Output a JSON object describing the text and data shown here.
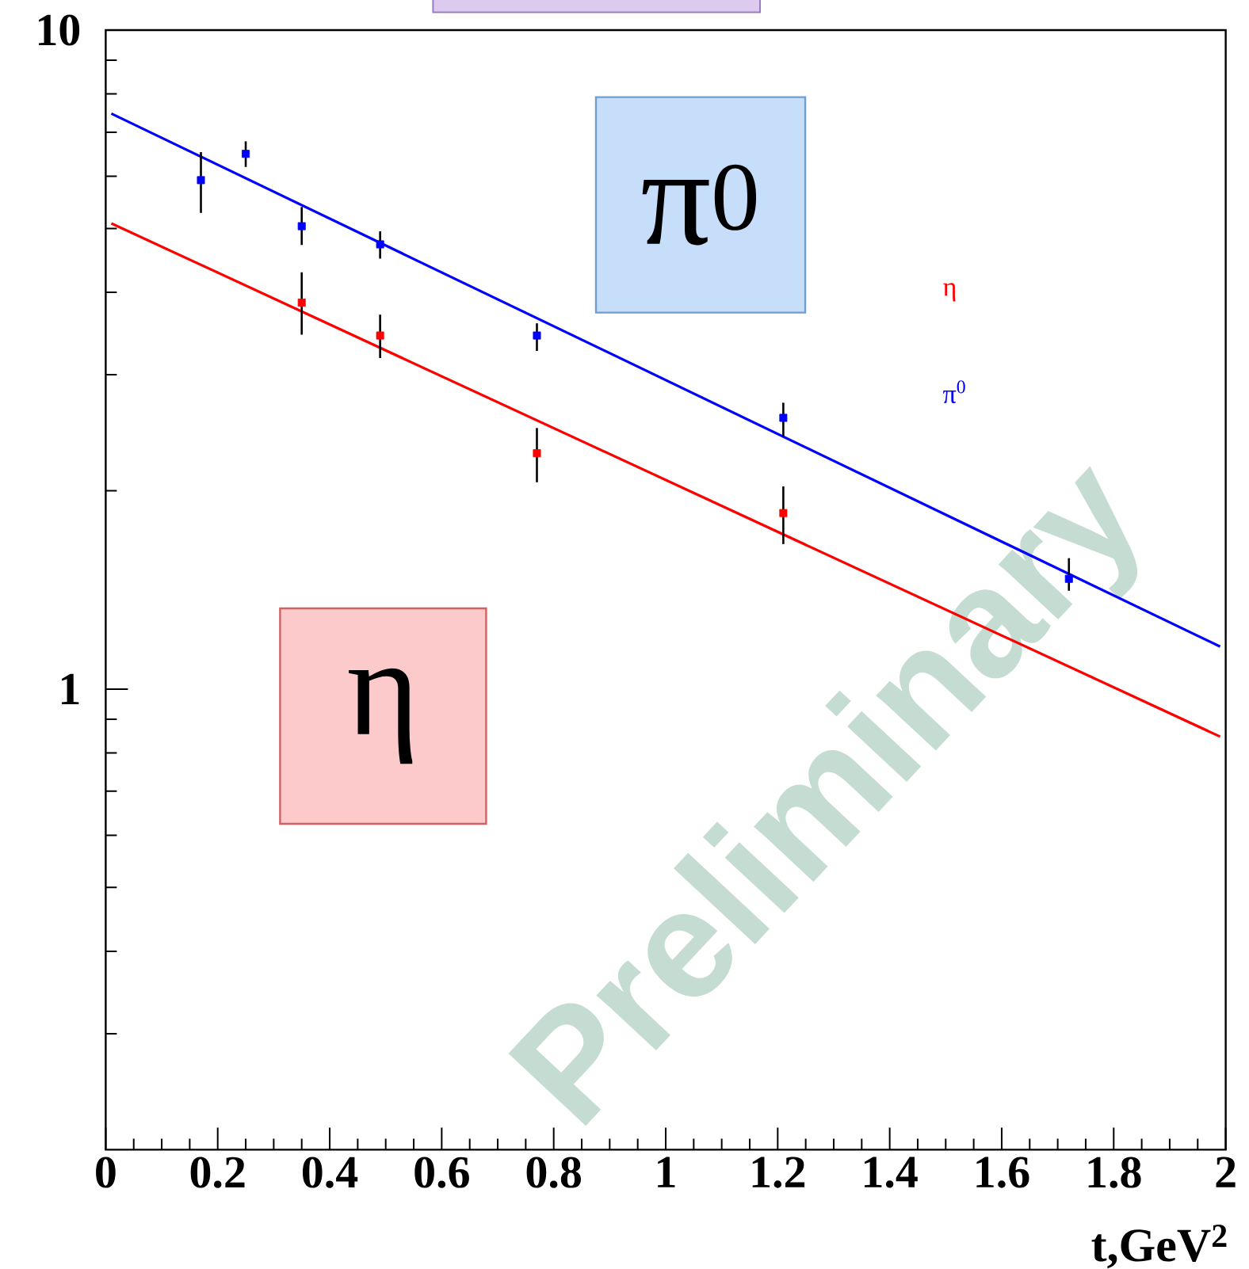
{
  "chart_data": {
    "type": "scatter",
    "xlabel": "t,GeV$^{2}$",
    "annotations": [
      "π$^{0}$",
      "η",
      "Preliminary"
    ],
    "log": "y",
    "marker": "square",
    "legend": "top right",
    "xlim": [
      0,
      2
    ],
    "xticks": [
      0,
      {
        "value": 0.05,
        "label": null
      },
      {
        "value": 0.1,
        "label": null
      },
      {
        "value": 0.15,
        "label": null
      },
      0.2,
      {
        "value": 0.25,
        "label": null
      },
      {
        "value": 0.3,
        "label": null
      },
      {
        "value": 0.35,
        "label": null
      },
      0.4,
      {
        "value": 0.45,
        "label": null
      },
      {
        "value": 0.5,
        "label": null
      },
      {
        "value": 0.55,
        "label": null
      },
      0.6,
      {
        "value": 0.65,
        "label": null
      },
      {
        "value": 0.7,
        "label": null
      },
      {
        "value": 0.75,
        "label": null
      },
      0.8,
      {
        "value": 0.85,
        "label": null
      },
      {
        "value": 0.9,
        "label": null
      },
      {
        "value": 0.95,
        "label": null
      },
      1,
      {
        "value": 1.05,
        "label": null
      },
      {
        "value": 1.1,
        "label": null
      },
      {
        "value": 1.15,
        "label": null
      },
      1.2,
      {
        "value": 1.25,
        "label": null
      },
      {
        "value": 1.3,
        "label": null
      },
      {
        "value": 1.35,
        "label": null
      },
      1.4,
      {
        "value": 1.45,
        "label": null
      },
      {
        "value": 1.5,
        "label": null
      },
      {
        "value": 1.55,
        "label": null
      },
      1.6,
      {
        "value": 1.65,
        "label": null
      },
      {
        "value": 1.7,
        "label": null
      },
      {
        "value": 1.75,
        "label": null
      },
      1.8,
      {
        "value": 1.85,
        "label": null
      },
      {
        "value": 1.9,
        "label": null
      },
      {
        "value": 1.95,
        "label": null
      },
      2
    ],
    "ylim": [
      0.2,
      10
    ],
    "yticks": [
      {
        "value": 0.3,
        "label": null
      },
      {
        "value": 0.4,
        "label": null
      },
      {
        "value": 0.5,
        "label": null
      },
      {
        "value": 0.6,
        "label": null
      },
      {
        "value": 0.7,
        "label": null
      },
      {
        "value": 0.8,
        "label": null
      },
      {
        "value": 0.9,
        "label": null
      },
      1,
      {
        "value": 2,
        "label": null
      },
      {
        "value": 3,
        "label": null
      },
      {
        "value": 4,
        "label": null
      },
      {
        "value": 5,
        "label": null
      },
      {
        "value": 6,
        "label": null
      },
      {
        "value": 7,
        "label": null
      },
      {
        "value": 8,
        "label": null
      },
      {
        "value": 9,
        "label": null
      },
      10
    ],
    "series": [
      {
        "name": "η",
        "color": "#ff0000",
        "x": [
          0.35,
          0.49,
          0.77,
          1.21
        ],
        "values": [
          3.86,
          3.44,
          2.28,
          1.85
        ],
        "errors": [
          [
            3.45,
            4.29
          ],
          [
            3.18,
            3.7
          ],
          [
            2.06,
            2.49
          ],
          [
            1.66,
            2.03
          ]
        ]
      },
      {
        "name": "π$^{0}$",
        "color": "#0000ff",
        "x": [
          0.17,
          0.25,
          0.35,
          0.49,
          0.77,
          1.21,
          1.72
        ],
        "values": [
          5.92,
          6.49,
          5.04,
          4.73,
          3.44,
          2.58,
          1.47
        ],
        "errors": [
          [
            5.28,
            6.53
          ],
          [
            6.2,
            6.78
          ],
          [
            4.72,
            5.39
          ],
          [
            4.5,
            4.95
          ],
          [
            3.26,
            3.59
          ],
          [
            2.42,
            2.72
          ],
          [
            1.41,
            1.58
          ]
        ]
      },
      {
        "type": "line",
        "marker": "none",
        "color": "#ff0000",
        "x": [
          0.01,
          1.99
        ],
        "values": [
          5.09,
          0.847
        ]
      },
      {
        "type": "line",
        "marker": "none",
        "color": "#0000ff",
        "x": [
          0.01,
          1.99
        ],
        "values": [
          7.47,
          1.16
        ]
      }
    ]
  }
}
